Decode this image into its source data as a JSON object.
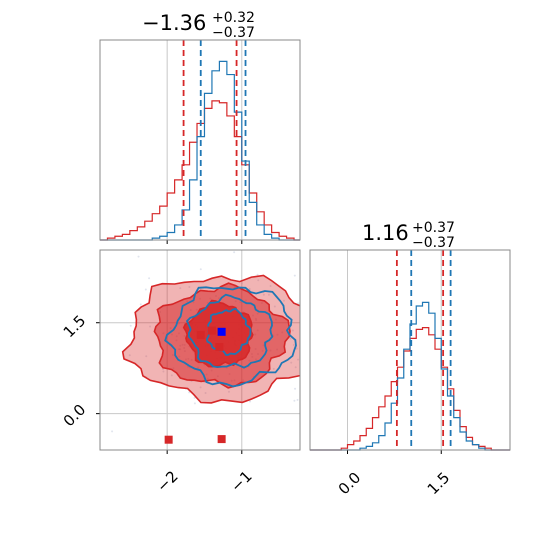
{
  "chart_data": {
    "type": "corner",
    "series_colors": {
      "red": "#d62728",
      "blue": "#1f77b4",
      "marker_blue": "#0000ff",
      "grid": "#c8c8c8"
    },
    "panels": [
      {
        "id": "hist-x",
        "type": "histogram",
        "title": {
          "main": "−1.36",
          "sup": "+0.32",
          "sub": "−0.37"
        },
        "xlim": [
          -2.9,
          -0.22
        ],
        "quantiles": {
          "red": [
            -1.78,
            -1.07
          ],
          "blue": [
            -1.55,
            -0.95
          ]
        },
        "series": [
          {
            "name": "",
            "color": "red",
            "bins_x": [
              -2.9,
              -2.8,
              -2.7,
              -2.6,
              -2.5,
              -2.4,
              -2.3,
              -2.2,
              -2.1,
              -2.0,
              -1.9,
              -1.8,
              -1.7,
              -1.6,
              -1.5,
              -1.4,
              -1.3,
              -1.2,
              -1.1,
              -1.0,
              -0.9,
              -0.8,
              -0.7,
              -0.6,
              -0.5,
              -0.4,
              -0.3
            ],
            "counts": [
              0.0,
              0.01,
              0.02,
              0.03,
              0.05,
              0.07,
              0.1,
              0.14,
              0.18,
              0.25,
              0.32,
              0.4,
              0.52,
              0.62,
              0.7,
              0.74,
              0.73,
              0.66,
              0.55,
              0.4,
              0.25,
              0.15,
              0.08,
              0.04,
              0.02,
              0.01,
              0.0
            ]
          },
          {
            "name": "",
            "color": "blue",
            "bins_x": [
              -2.9,
              -2.8,
              -2.7,
              -2.6,
              -2.5,
              -2.4,
              -2.3,
              -2.2,
              -2.1,
              -2.0,
              -1.9,
              -1.8,
              -1.7,
              -1.6,
              -1.5,
              -1.4,
              -1.3,
              -1.2,
              -1.1,
              -1.0,
              -0.9,
              -0.8,
              -0.7,
              -0.6,
              -0.5,
              -0.4,
              -0.3
            ],
            "counts": [
              0.0,
              0.0,
              0.0,
              0.0,
              0.0,
              0.0,
              0.0,
              0.01,
              0.02,
              0.04,
              0.08,
              0.16,
              0.32,
              0.55,
              0.78,
              0.9,
              0.95,
              0.88,
              0.68,
              0.42,
              0.2,
              0.08,
              0.03,
              0.01,
              0.0,
              0.0,
              0.0
            ]
          }
        ]
      },
      {
        "id": "hist-y",
        "type": "histogram",
        "title": {
          "main": "1.16",
          "sup": "+0.37",
          "sub": "−0.37"
        },
        "xlim": [
          -0.6,
          2.6
        ],
        "xticks": [
          "0.0",
          "1.5"
        ],
        "xtick_values": [
          0.0,
          1.5
        ],
        "quantiles": {
          "red": [
            0.79,
            1.53
          ],
          "blue": [
            1.02,
            1.65
          ]
        },
        "series": [
          {
            "name": "",
            "color": "red",
            "bins_x": [
              -0.6,
              -0.5,
              -0.4,
              -0.3,
              -0.2,
              -0.1,
              0.0,
              0.1,
              0.2,
              0.3,
              0.4,
              0.5,
              0.6,
              0.7,
              0.8,
              0.9,
              1.0,
              1.1,
              1.2,
              1.3,
              1.4,
              1.5,
              1.6,
              1.7,
              1.8,
              1.9,
              2.0,
              2.1,
              2.2,
              2.3,
              2.4,
              2.5
            ],
            "counts": [
              0.0,
              0.0,
              0.0,
              0.0,
              0.0,
              0.01,
              0.03,
              0.05,
              0.08,
              0.12,
              0.18,
              0.24,
              0.3,
              0.38,
              0.46,
              0.55,
              0.62,
              0.67,
              0.68,
              0.64,
              0.56,
              0.46,
              0.34,
              0.22,
              0.13,
              0.07,
              0.03,
              0.02,
              0.01,
              0.0,
              0.0,
              0.0
            ]
          },
          {
            "name": "",
            "color": "blue",
            "bins_x": [
              -0.6,
              -0.5,
              -0.4,
              -0.3,
              -0.2,
              -0.1,
              0.0,
              0.1,
              0.2,
              0.3,
              0.4,
              0.5,
              0.6,
              0.7,
              0.8,
              0.9,
              1.0,
              1.1,
              1.2,
              1.3,
              1.4,
              1.5,
              1.6,
              1.7,
              1.8,
              1.9,
              2.0,
              2.1,
              2.2,
              2.3,
              2.4,
              2.5
            ],
            "counts": [
              0.0,
              0.0,
              0.0,
              0.0,
              0.0,
              0.0,
              0.0,
              0.0,
              0.01,
              0.02,
              0.04,
              0.08,
              0.15,
              0.26,
              0.4,
              0.56,
              0.7,
              0.8,
              0.82,
              0.76,
              0.62,
              0.45,
              0.3,
              0.18,
              0.1,
              0.05,
              0.03,
              0.01,
              0.0,
              0.0,
              0.0,
              0.0
            ]
          }
        ]
      },
      {
        "id": "scatter-2d",
        "type": "scatter",
        "xlim": [
          -2.9,
          -0.22
        ],
        "ylim": [
          -0.6,
          2.7
        ],
        "xticks": [
          "−2",
          "−1"
        ],
        "xtick_values": [
          -2,
          -1
        ],
        "yticks": [
          "0.0",
          "1.5"
        ],
        "ytick_values": [
          0.0,
          1.5
        ],
        "contours": {
          "red": [
            {
              "center": [
                -1.3,
                1.3
              ],
              "rx": 0.44,
              "ry": 0.52,
              "fill_opacity": 0.85
            },
            {
              "center": [
                -1.28,
                1.27
              ],
              "rx": 0.88,
              "ry": 0.8,
              "fill_opacity": 0.55
            },
            {
              "center": [
                -1.27,
                1.25
              ],
              "rx": 1.25,
              "ry": 1.02,
              "fill_opacity": 0.35
            }
          ],
          "blue": [
            {
              "center": [
                -1.18,
                1.35
              ],
              "rx": 0.28,
              "ry": 0.36
            },
            {
              "center": [
                -1.15,
                1.33
              ],
              "rx": 0.55,
              "ry": 0.57
            },
            {
              "center": [
                -1.12,
                1.3
              ],
              "rx": 0.82,
              "ry": 0.8
            }
          ]
        },
        "markers": [
          {
            "x": -1.55,
            "y": 1.3,
            "color": "red"
          },
          {
            "x": -1.4,
            "y": 1.37,
            "color": "red"
          },
          {
            "x": -1.3,
            "y": 1.1,
            "color": "red"
          },
          {
            "x": -1.27,
            "y": 1.35,
            "color": "marker_blue"
          },
          {
            "x": -1.98,
            "y": -0.43,
            "color": "red"
          },
          {
            "x": -1.27,
            "y": -0.42,
            "color": "red"
          }
        ]
      }
    ]
  }
}
